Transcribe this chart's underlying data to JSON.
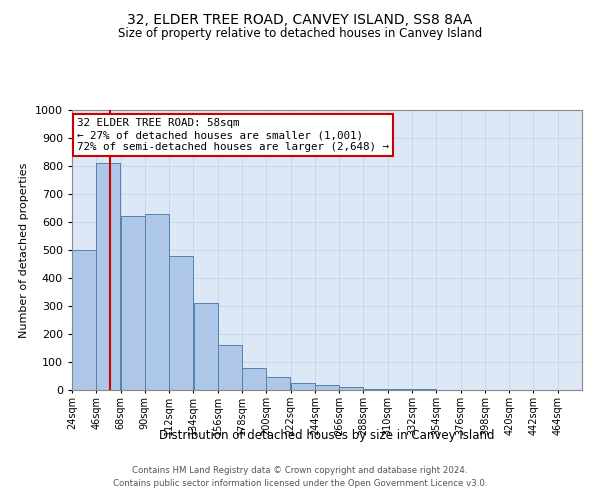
{
  "title": "32, ELDER TREE ROAD, CANVEY ISLAND, SS8 8AA",
  "subtitle": "Size of property relative to detached houses in Canvey Island",
  "xlabel": "Distribution of detached houses by size in Canvey Island",
  "ylabel": "Number of detached properties",
  "bin_labels": [
    "24sqm",
    "46sqm",
    "68sqm",
    "90sqm",
    "112sqm",
    "134sqm",
    "156sqm",
    "178sqm",
    "200sqm",
    "222sqm",
    "244sqm",
    "266sqm",
    "288sqm",
    "310sqm",
    "332sqm",
    "354sqm",
    "376sqm",
    "398sqm",
    "420sqm",
    "442sqm",
    "464sqm"
  ],
  "bin_edges": [
    24,
    46,
    68,
    90,
    112,
    134,
    156,
    178,
    200,
    222,
    244,
    266,
    288,
    310,
    332,
    354,
    376,
    398,
    420,
    442,
    464,
    486
  ],
  "bar_heights": [
    500,
    810,
    620,
    630,
    480,
    310,
    160,
    80,
    48,
    25,
    18,
    10,
    5,
    3,
    2,
    1,
    0,
    0,
    0,
    0,
    0
  ],
  "bar_color": "#aec6e8",
  "bar_edge_color": "#5580b0",
  "property_line_x": 58,
  "property_line_color": "#cc0000",
  "ylim": [
    0,
    1000
  ],
  "yticks": [
    0,
    100,
    200,
    300,
    400,
    500,
    600,
    700,
    800,
    900,
    1000
  ],
  "annotation_title": "32 ELDER TREE ROAD: 58sqm",
  "annotation_line1": "← 27% of detached houses are smaller (1,001)",
  "annotation_line2": "72% of semi-detached houses are larger (2,648) →",
  "annotation_box_color": "#cc0000",
  "grid_color": "#c8d8ea",
  "background_color": "#dce8f5",
  "footer_line1": "Contains HM Land Registry data © Crown copyright and database right 2024.",
  "footer_line2": "Contains public sector information licensed under the Open Government Licence v3.0."
}
